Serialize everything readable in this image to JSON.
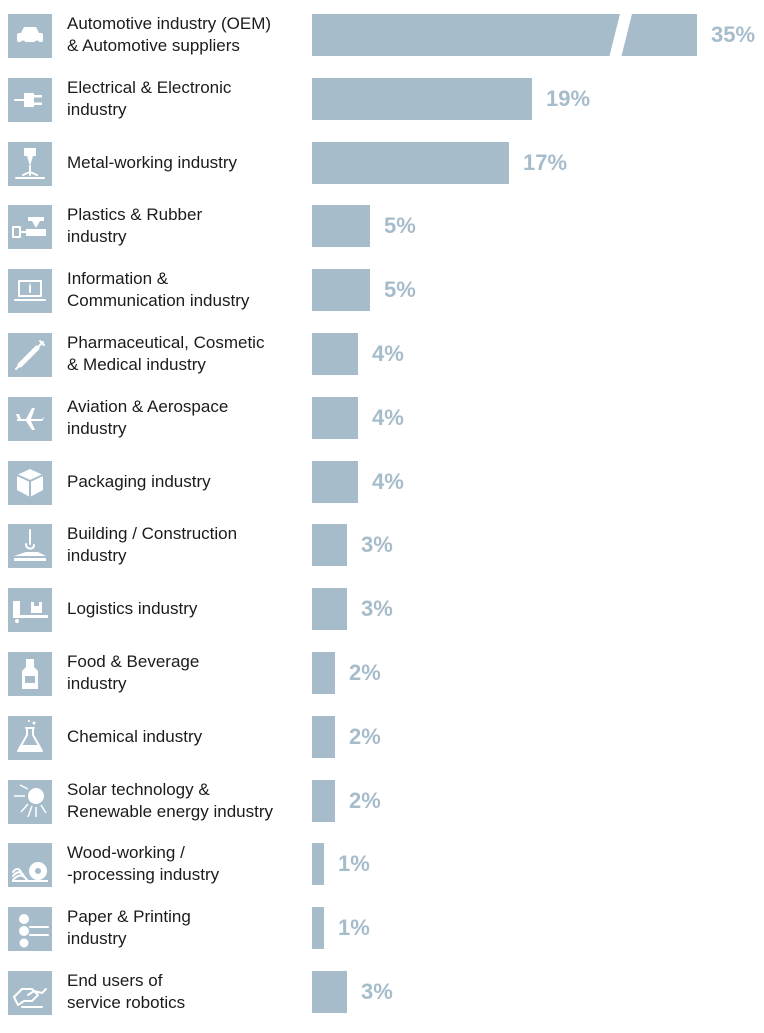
{
  "colors": {
    "bar": "#a7bccb",
    "value_text": "#a7bccb",
    "label_text": "#1b1b1b",
    "background": "#ffffff"
  },
  "chart_data": {
    "type": "bar",
    "orientation": "horizontal",
    "unit": "%",
    "axis_break_on_first_bar": true,
    "categories": [
      "Automotive industry (OEM)\n& Automotive suppliers",
      "Electrical & Electronic\nindustry",
      "Metal-working industry",
      "Plastics & Rubber\nindustry",
      "Information &\nCommunication industry",
      "Pharmaceutical, Cosmetic\n& Medical industry",
      "Aviation & Aerospace\nindustry",
      "Packaging industry",
      "Building / Construction\nindustry",
      "Logistics industry",
      "Food & Beverage\nindustry",
      "Chemical industry",
      "Solar technology &\nRenewable energy industry",
      "Wood-working /\n-processing industry",
      "Paper & Printing\nindustry",
      "End users of\nservice robotics"
    ],
    "values": [
      35,
      19,
      17,
      5,
      5,
      4,
      4,
      4,
      3,
      3,
      2,
      2,
      2,
      1,
      1,
      3
    ],
    "value_labels": [
      "35%",
      "19%",
      "17%",
      "5%",
      "5%",
      "4%",
      "4%",
      "4%",
      "3%",
      "3%",
      "2%",
      "2%",
      "2%",
      "1%",
      "1%",
      "3%"
    ],
    "icons": [
      "car-icon",
      "plug-icon",
      "laser-cutter-icon",
      "injection-mold-icon",
      "laptop-icon",
      "syringe-icon",
      "airplane-icon",
      "box-icon",
      "crane-icon",
      "truck-icon",
      "bottle-icon",
      "flask-icon",
      "sun-icon",
      "saw-blade-icon",
      "printing-rollers-icon",
      "handshake-icon"
    ]
  }
}
